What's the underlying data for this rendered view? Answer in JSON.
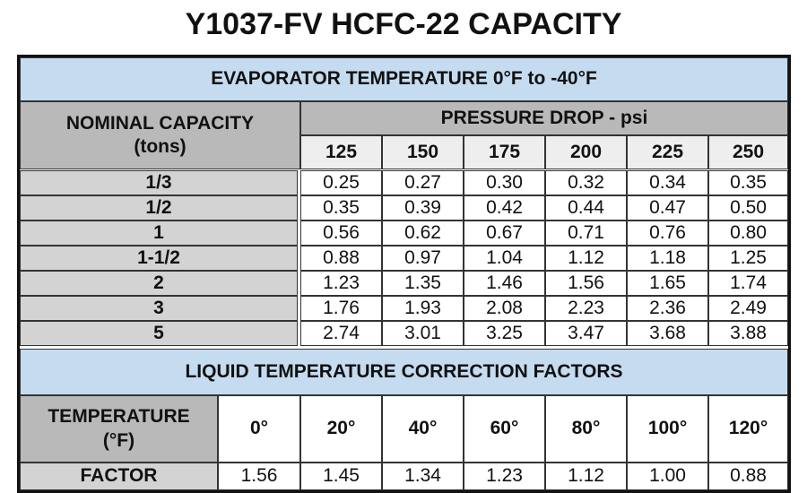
{
  "title": "Y1037-FV HCFC-22 CAPACITY",
  "capacity_table": {
    "section_title": "EVAPORATOR TEMPERATURE  0°F to -40°F",
    "row_header": "NOMINAL CAPACITY",
    "row_header_unit": "(tons)",
    "column_group": "PRESSURE DROP - psi",
    "columns": [
      "125",
      "150",
      "175",
      "200",
      "225",
      "250"
    ],
    "rows": [
      {
        "label": "1/3",
        "values": [
          "0.25",
          "0.27",
          "0.30",
          "0.32",
          "0.34",
          "0.35"
        ]
      },
      {
        "label": "1/2",
        "values": [
          "0.35",
          "0.39",
          "0.42",
          "0.44",
          "0.47",
          "0.50"
        ]
      },
      {
        "label": "1",
        "values": [
          "0.56",
          "0.62",
          "0.67",
          "0.71",
          "0.76",
          "0.80"
        ]
      },
      {
        "label": "1-1/2",
        "values": [
          "0.88",
          "0.97",
          "1.04",
          "1.12",
          "1.18",
          "1.25"
        ]
      },
      {
        "label": "2",
        "values": [
          "1.23",
          "1.35",
          "1.46",
          "1.56",
          "1.65",
          "1.74"
        ]
      },
      {
        "label": "3",
        "values": [
          "1.76",
          "1.93",
          "2.08",
          "2.23",
          "2.36",
          "2.49"
        ]
      },
      {
        "label": "5",
        "values": [
          "2.74",
          "3.01",
          "3.25",
          "3.47",
          "3.68",
          "3.88"
        ]
      }
    ]
  },
  "correction_table": {
    "section_title": "LIQUID TEMPERATURE CORRECTION FACTORS",
    "row_header": "TEMPERATURE",
    "row_header_unit": "(°F)",
    "columns": [
      "0°",
      "20°",
      "40°",
      "60°",
      "80°",
      "100°",
      "120°"
    ],
    "row_label": "FACTOR",
    "values": [
      "1.56",
      "1.45",
      "1.34",
      "1.23",
      "1.12",
      "1.00",
      "0.88"
    ]
  }
}
